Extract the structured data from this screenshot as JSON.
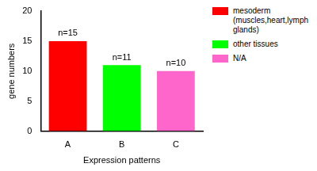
{
  "chart_data": {
    "type": "bar",
    "categories": [
      "A",
      "B",
      "C"
    ],
    "x_label": "Expression patterns",
    "y_label": "gene numbers",
    "series": [
      {
        "name": "mesoderm (muscles,heart,lymph glands)",
        "color": "#ff0000",
        "values": [
          15,
          null,
          null
        ],
        "value_labels": [
          "n=15",
          null,
          null
        ]
      },
      {
        "name": "other tissues",
        "color": "#00ff00",
        "values": [
          null,
          11,
          null
        ],
        "value_labels": [
          null,
          "n=11",
          null
        ]
      },
      {
        "name": "N/A",
        "color": "#ff66cc",
        "values": [
          null,
          null,
          10
        ],
        "value_labels": [
          null,
          null,
          "n=10"
        ]
      }
    ],
    "ylim": [
      0,
      20
    ],
    "yticks": [
      0,
      5,
      10,
      15,
      20
    ],
    "grid": false,
    "legend": "top-right",
    "data_labels": true
  }
}
